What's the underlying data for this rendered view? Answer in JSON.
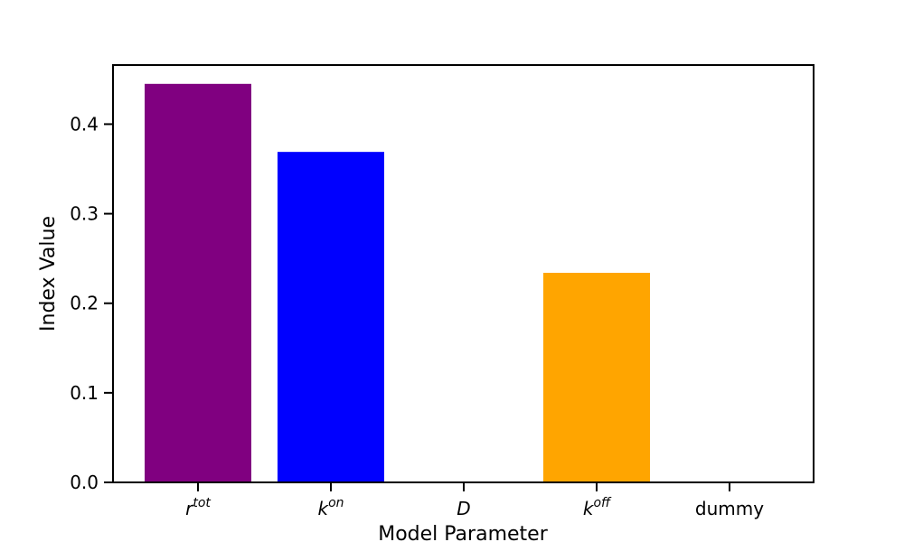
{
  "chart_data": {
    "type": "bar",
    "categories": [
      {
        "base": "r",
        "sup": "tot",
        "italic": true
      },
      {
        "base": "k",
        "sup": "on",
        "italic": true
      },
      {
        "base": "D",
        "sup": "",
        "italic": true
      },
      {
        "base": "k",
        "sup": "off",
        "italic": true
      },
      {
        "base": "dummy",
        "sup": "",
        "italic": false
      }
    ],
    "values": [
      0.445,
      0.369,
      0.0,
      0.234,
      0.0
    ],
    "colors": [
      "#800080",
      "#0000ff",
      "#ffffff",
      "#ffa500",
      "#ffffff"
    ],
    "xlabel": "Model Parameter",
    "ylabel": "Index Value",
    "ylim": [
      0,
      0.466
    ],
    "yticks": [
      0.0,
      0.1,
      0.2,
      0.3,
      0.4
    ],
    "ytick_labels": [
      "0.0",
      "0.1",
      "0.2",
      "0.3",
      "0.4"
    ],
    "grid": false,
    "title": ""
  }
}
